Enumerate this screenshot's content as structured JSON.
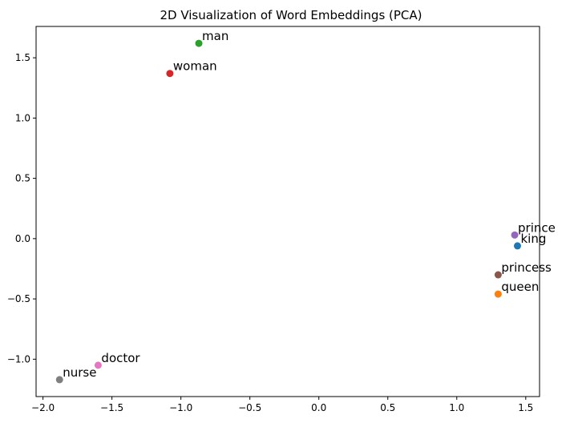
{
  "chart_data": {
    "type": "scatter",
    "title": "2D Visualization of Word Embeddings (PCA)",
    "xlabel": "",
    "ylabel": "",
    "xlim": [
      -2.05,
      1.6
    ],
    "ylim": [
      -1.31,
      1.76
    ],
    "grid": false,
    "x_ticks": [
      -2.0,
      -1.5,
      -1.0,
      -0.5,
      0.0,
      0.5,
      1.0,
      1.5
    ],
    "x_tick_labels": [
      "−2.0",
      "−1.5",
      "−1.0",
      "−0.5",
      "0.0",
      "0.5",
      "1.0",
      "1.5"
    ],
    "y_ticks": [
      -1.0,
      -0.5,
      0.0,
      0.5,
      1.0,
      1.5
    ],
    "y_tick_labels": [
      "−1.0",
      "−0.5",
      "0.0",
      "0.5",
      "1.0",
      "1.5"
    ],
    "points": [
      {
        "label": "king",
        "x": 1.44,
        "y": -0.06,
        "color": "#1f77b4"
      },
      {
        "label": "queen",
        "x": 1.3,
        "y": -0.46,
        "color": "#ff7f0e"
      },
      {
        "label": "man",
        "x": -0.87,
        "y": 1.62,
        "color": "#2ca02c"
      },
      {
        "label": "woman",
        "x": -1.08,
        "y": 1.37,
        "color": "#d62728"
      },
      {
        "label": "prince",
        "x": 1.42,
        "y": 0.03,
        "color": "#9467bd"
      },
      {
        "label": "princess",
        "x": 1.3,
        "y": -0.3,
        "color": "#8c564b"
      },
      {
        "label": "doctor",
        "x": -1.6,
        "y": -1.05,
        "color": "#e377c2"
      },
      {
        "label": "nurse",
        "x": -1.88,
        "y": -1.17,
        "color": "#7f7f7f"
      }
    ]
  }
}
